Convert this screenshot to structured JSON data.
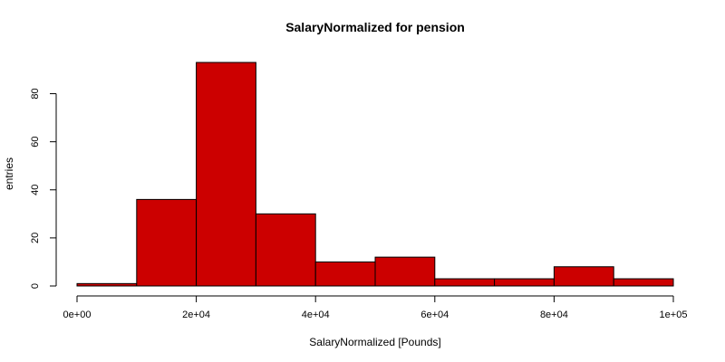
{
  "chart_data": {
    "type": "bar",
    "title": "SalaryNormalized for pension",
    "xlabel": "SalaryNormalized [Pounds]",
    "ylabel": "entries",
    "bin_edges": [
      0,
      10000,
      20000,
      30000,
      40000,
      50000,
      60000,
      70000,
      80000,
      90000,
      100000
    ],
    "values": [
      1,
      36,
      93,
      30,
      10,
      12,
      3,
      3,
      8,
      3
    ],
    "xlim": [
      0,
      100000
    ],
    "ylim": [
      0,
      93
    ],
    "x_ticks": [
      0,
      20000,
      40000,
      60000,
      80000,
      100000
    ],
    "x_tick_labels": [
      "0e+00",
      "2e+04",
      "4e+04",
      "6e+04",
      "8e+04",
      "1e+05"
    ],
    "y_ticks": [
      0,
      20,
      40,
      60,
      80
    ],
    "y_tick_labels": [
      "0",
      "20",
      "40",
      "60",
      "80"
    ],
    "bar_color": "#cc0000",
    "grid": false
  }
}
